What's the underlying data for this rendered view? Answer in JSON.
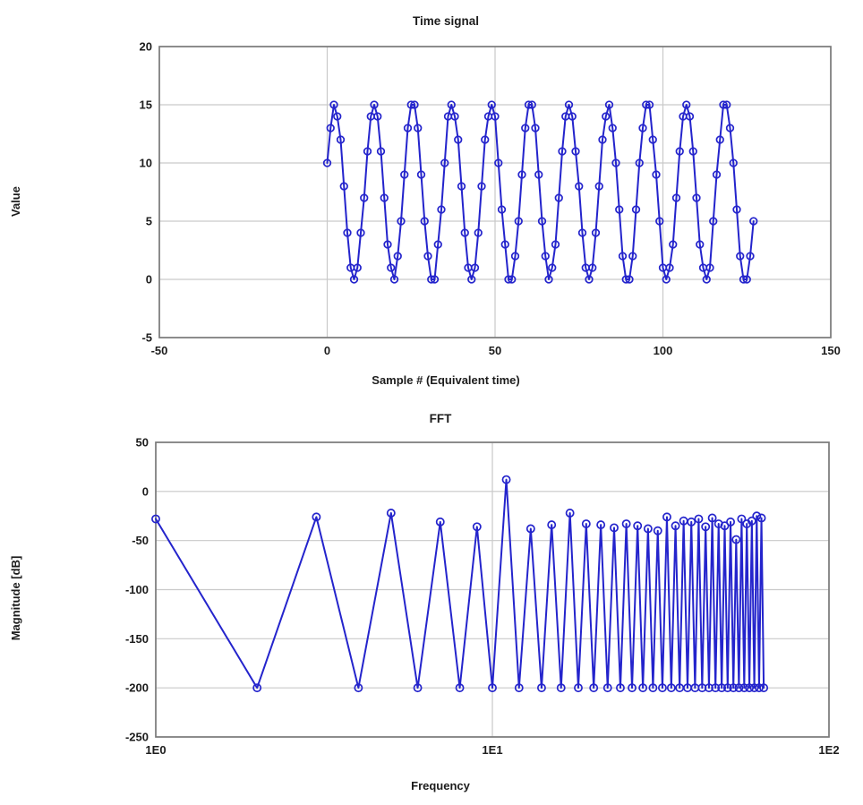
{
  "figure": {
    "series_color": "#2424cc",
    "grid_color": "#c9c9c9",
    "frame_color": "#7a7a7a",
    "background_color": "#ffffff"
  },
  "chart_data": [
    {
      "name": "time-signal",
      "type": "line",
      "title": "Time signal",
      "xlabel": "Sample # (Equivalent time)",
      "ylabel": "Value",
      "xscale": "linear",
      "xlim": [
        -50,
        150
      ],
      "ylim": [
        -5,
        20
      ],
      "grid": true,
      "legend": "none",
      "marker": "open-circle",
      "xticks": [
        {
          "v": -50,
          "label": "-50"
        },
        {
          "v": 0,
          "label": "0"
        },
        {
          "v": 50,
          "label": "50"
        },
        {
          "v": 100,
          "label": "100"
        },
        {
          "v": 150,
          "label": "150"
        }
      ],
      "yticks": [
        {
          "v": -5,
          "label": "-5"
        },
        {
          "v": 0,
          "label": "0"
        },
        {
          "v": 5,
          "label": "5"
        },
        {
          "v": 10,
          "label": "10"
        },
        {
          "v": 15,
          "label": "15"
        },
        {
          "v": 20,
          "label": "20"
        }
      ],
      "x": [
        0,
        1,
        2,
        3,
        4,
        5,
        6,
        7,
        8,
        9,
        10,
        11,
        12,
        13,
        14,
        15,
        16,
        17,
        18,
        19,
        20,
        21,
        22,
        23,
        24,
        25,
        26,
        27,
        28,
        29,
        30,
        31,
        32,
        33,
        34,
        35,
        36,
        37,
        38,
        39,
        40,
        41,
        42,
        43,
        44,
        45,
        46,
        47,
        48,
        49,
        50,
        51,
        52,
        53,
        54,
        55,
        56,
        57,
        58,
        59,
        60,
        61,
        62,
        63,
        64,
        65,
        66,
        67,
        68,
        69,
        70,
        71,
        72,
        73,
        74,
        75,
        76,
        77,
        78,
        79,
        80,
        81,
        82,
        83,
        84,
        85,
        86,
        87,
        88,
        89,
        90,
        91,
        92,
        93,
        94,
        95,
        96,
        97,
        98,
        99,
        100,
        101,
        102,
        103,
        104,
        105,
        106,
        107,
        108,
        109,
        110,
        111,
        112,
        113,
        114,
        115,
        116,
        117,
        118,
        119,
        120,
        121,
        122,
        123,
        124,
        125,
        126,
        127
      ],
      "y": [
        10,
        13,
        15,
        14,
        12,
        8,
        4,
        1,
        0,
        1,
        4,
        7,
        11,
        14,
        15,
        14,
        11,
        7,
        3,
        1,
        0,
        2,
        5,
        9,
        13,
        15,
        15,
        13,
        9,
        5,
        2,
        0,
        0,
        3,
        6,
        10,
        14,
        15,
        14,
        12,
        8,
        4,
        1,
        0,
        1,
        4,
        8,
        12,
        14,
        15,
        14,
        10,
        6,
        3,
        0,
        0,
        2,
        5,
        9,
        13,
        15,
        15,
        13,
        9,
        5,
        2,
        0,
        1,
        3,
        7,
        11,
        14,
        15,
        14,
        11,
        8,
        4,
        1,
        0,
        1,
        4,
        8,
        12,
        14,
        15,
        13,
        10,
        6,
        2,
        0,
        0,
        2,
        6,
        10,
        13,
        15,
        15,
        12,
        9,
        5,
        1,
        0,
        1,
        3,
        7,
        11,
        14,
        15,
        14,
        11,
        7,
        3,
        1,
        0,
        1,
        5,
        9,
        12,
        15,
        15,
        13,
        10,
        6,
        2,
        0,
        0,
        2,
        5
      ],
      "description": "4-bit quantized sine wave, 11 cycles over 128 samples, values 0..15"
    },
    {
      "name": "fft",
      "type": "line",
      "title": "FFT",
      "xlabel": "Frequency",
      "ylabel": "Magnitude [dB]",
      "xscale": "log",
      "xlim": [
        1,
        100
      ],
      "ylim": [
        -250,
        50
      ],
      "grid": true,
      "legend": "none",
      "marker": "open-circle",
      "xticks": [
        {
          "v": 1,
          "label": "1E0"
        },
        {
          "v": 10,
          "label": "1E1"
        },
        {
          "v": 100,
          "label": "1E2"
        }
      ],
      "yticks": [
        {
          "v": -250,
          "label": "-250"
        },
        {
          "v": -200,
          "label": "-200"
        },
        {
          "v": -150,
          "label": "-150"
        },
        {
          "v": -100,
          "label": "-100"
        },
        {
          "v": -50,
          "label": "-50"
        },
        {
          "v": 0,
          "label": "0"
        },
        {
          "v": 50,
          "label": "50"
        }
      ],
      "x": [
        1,
        2,
        3,
        4,
        5,
        6,
        7,
        8,
        9,
        10,
        11,
        12,
        13,
        14,
        15,
        16,
        17,
        18,
        19,
        20,
        21,
        22,
        23,
        24,
        25,
        26,
        27,
        28,
        29,
        30,
        31,
        32,
        33,
        34,
        35,
        36,
        37,
        38,
        39,
        40,
        41,
        42,
        43,
        44,
        45,
        46,
        47,
        48,
        49,
        50,
        51,
        52,
        53,
        54,
        55,
        56,
        57,
        58,
        59,
        60,
        61,
        62,
        63,
        64
      ],
      "y": [
        -28,
        -200,
        -26,
        -200,
        -22,
        -200,
        -31,
        -200,
        -36,
        -200,
        12,
        -200,
        -38,
        -200,
        -34,
        -200,
        -22,
        -200,
        -33,
        -200,
        -34,
        -200,
        -37,
        -200,
        -33,
        -200,
        -35,
        -200,
        -38,
        -200,
        -40,
        -200,
        -26,
        -200,
        -35,
        -200,
        -30,
        -200,
        -31,
        -200,
        -28,
        -200,
        -36,
        -200,
        -27,
        -200,
        -33,
        -200,
        -35,
        -200,
        -31,
        -200,
        -49,
        -200,
        -28,
        -200,
        -33,
        -200,
        -30,
        -200,
        -25,
        -200,
        -27,
        -200
      ],
      "description": "FFT magnitude in dB: fundamental peak at bin 11 (+12 dB), odd harmonics between -22 and -49 dB, even bins at -200 dB noise floor"
    }
  ]
}
